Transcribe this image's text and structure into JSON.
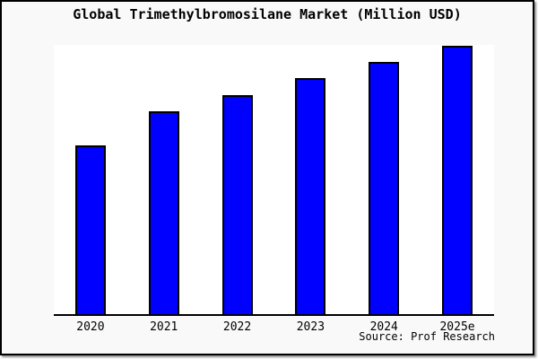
{
  "window": {
    "background_color": "#f9f9f9",
    "frame_border_color": "#000000",
    "plot_background_color": "#ffffff"
  },
  "chart_data": {
    "type": "bar",
    "title": "Global Trimethylbromosilane Market (Million USD)",
    "categories": [
      "2020",
      "2021",
      "2022",
      "2023",
      "2024",
      "2025e"
    ],
    "values": [
      63,
      75.5,
      81.7,
      88,
      94,
      100
    ],
    "values_note": "no y-axis ticks shown; values are relative bar heights with 2025e = 100",
    "xlabel": "",
    "ylabel": "",
    "ylim": [
      0,
      100
    ],
    "grid": false,
    "legend": false,
    "y_axis_visible": false,
    "bar_color": "#0000fe",
    "bar_border_color": "#000000",
    "source": "Source: Prof Research"
  }
}
